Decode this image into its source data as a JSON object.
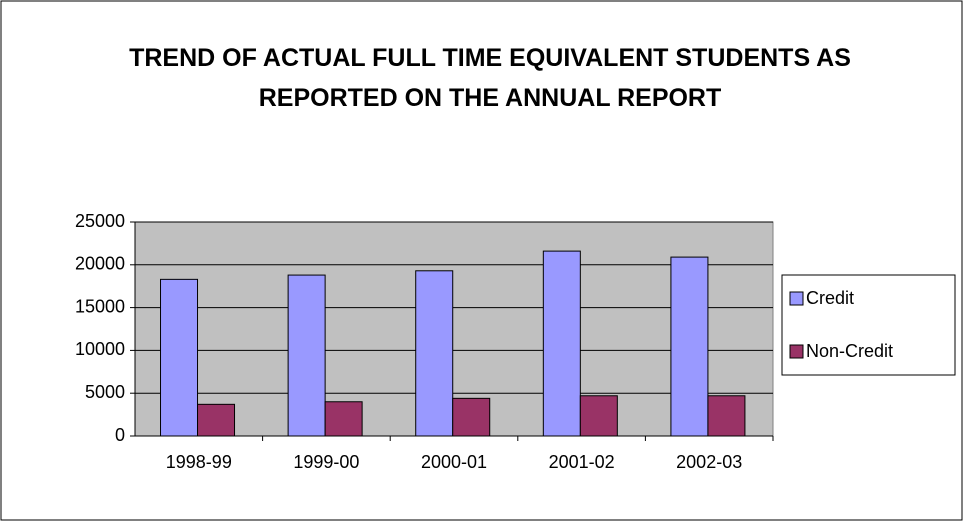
{
  "chart_data": {
    "type": "bar",
    "title": "TREND OF ACTUAL FULL TIME EQUIVALENT STUDENTS AS REPORTED ON THE ANNUAL REPORT",
    "categories": [
      "1998-99",
      "1999-00",
      "2000-01",
      "2001-02",
      "2002-03"
    ],
    "series": [
      {
        "name": "Credit",
        "color": "#9999ff",
        "values": [
          18300,
          18800,
          19300,
          21600,
          20900
        ]
      },
      {
        "name": "Non-Credit",
        "color": "#993366",
        "values": [
          3700,
          4000,
          4400,
          4700,
          4700
        ]
      }
    ],
    "ylim": [
      0,
      25000
    ],
    "yticks": [
      0,
      5000,
      10000,
      15000,
      20000,
      25000
    ],
    "grid": true,
    "legend": "right"
  }
}
